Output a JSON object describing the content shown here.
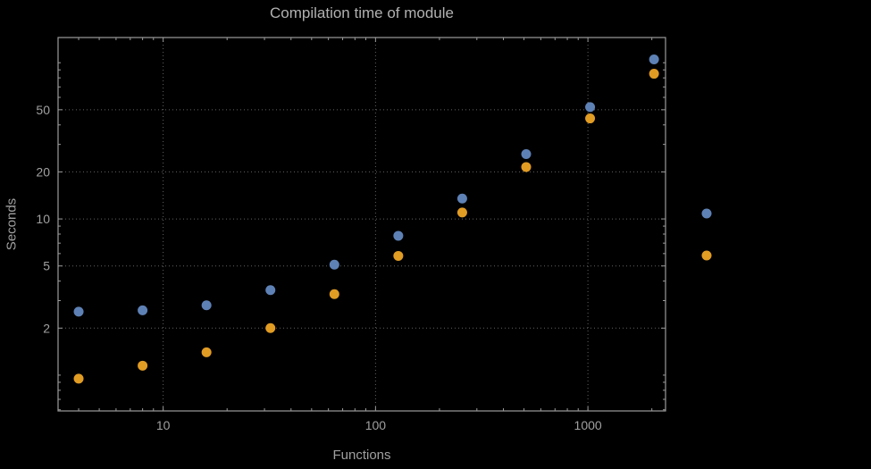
{
  "chart_data": {
    "type": "scatter",
    "title": "Compilation time of module",
    "xlabel": "Functions",
    "ylabel": "Seconds",
    "x_scale": "log",
    "y_scale": "log",
    "xlim": [
      3.2,
      2320
    ],
    "ylim": [
      0.59,
      145
    ],
    "x_ticks": [
      10,
      100,
      1000
    ],
    "y_ticks": [
      2,
      5,
      10,
      20,
      50
    ],
    "grid": "dotted",
    "x": [
      4,
      8,
      16,
      32,
      64,
      128,
      256,
      512,
      1024,
      2048
    ],
    "series": [
      {
        "name": "blue",
        "label": "",
        "color": "#5e81b5",
        "values": [
          2.55,
          2.6,
          2.8,
          3.5,
          5.1,
          7.8,
          13.5,
          26,
          52,
          105
        ]
      },
      {
        "name": "orange",
        "label": "",
        "color": "#e19c24",
        "values": [
          0.95,
          1.15,
          1.4,
          2.0,
          3.3,
          5.8,
          11,
          21.5,
          44,
          85
        ]
      }
    ],
    "legend": {
      "position": "right-outside",
      "entries": [
        {
          "name": "blue",
          "label": "",
          "color": "#5e81b5"
        },
        {
          "name": "orange",
          "label": "",
          "color": "#e19c24"
        }
      ]
    }
  },
  "colors": {
    "background": "#000000",
    "frame": "#9b9b9b",
    "grid": "#636363",
    "title_text": "#b1b1b1",
    "label_text": "#a0a0a0",
    "tick_text": "#a0a0a0",
    "series_blue": "#5e81b5",
    "series_orange": "#e19c24"
  }
}
